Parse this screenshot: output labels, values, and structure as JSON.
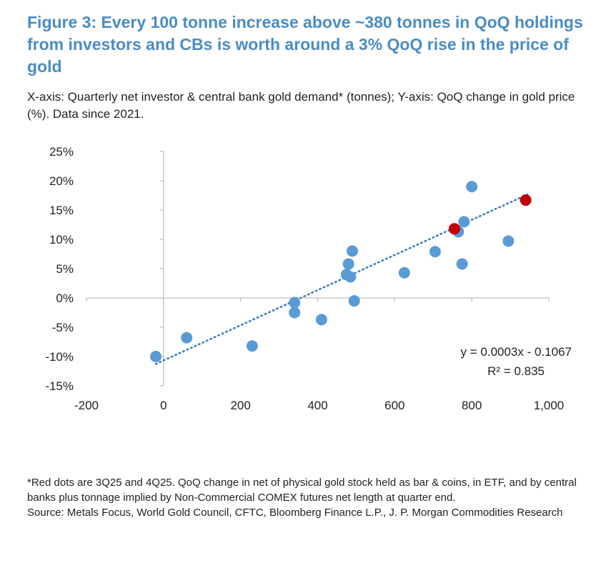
{
  "title": "Figure 3: Every 100 tonne increase above ~380 tonnes in QoQ holdings from investors and CBs is worth around a 3% QoQ rise in the price of gold",
  "subtitle": "X-axis: Quarterly net investor & central bank gold demand* (tonnes); Y-axis: QoQ change in gold price (%). Data since 2021.",
  "footnote": "*Red dots are 3Q25 and 4Q25. QoQ change in net of physical gold stock held as bar & coins, in ETF, and by central banks plus tonnage implied by Non-Commercial COMEX futures net length at quarter end.",
  "source": "Source: Metals Focus, World Gold Council, CFTC, Bloomberg Finance L.P., J. P. Morgan Commodities Research",
  "colors": {
    "title": "#4a8cc4",
    "blue_points": "#5b9bd5",
    "red_points": "#c00000",
    "trendline": "#3a7fc1",
    "axis": "#bfbfbf"
  },
  "chart_data": {
    "type": "scatter",
    "xlim": [
      -200,
      1000
    ],
    "ylim": [
      -0.15,
      0.25
    ],
    "x_ticks": [
      -200,
      0,
      200,
      400,
      600,
      800,
      1000
    ],
    "x_tick_labels": [
      "-200",
      "0",
      "200",
      "400",
      "600",
      "800",
      "1,000"
    ],
    "y_ticks": [
      -0.15,
      -0.1,
      -0.05,
      0.0,
      0.05,
      0.1,
      0.15,
      0.2,
      0.25
    ],
    "y_tick_labels": [
      "-15%",
      "-10%",
      "-5%",
      "0%",
      "5%",
      "10%",
      "15%",
      "20%",
      "25%"
    ],
    "grid": false,
    "series": [
      {
        "color": "#5b9bd5",
        "points": [
          [
            -20,
            -0.1
          ],
          [
            60,
            -0.068
          ],
          [
            230,
            -0.082
          ],
          [
            340,
            -0.025
          ],
          [
            340,
            -0.008
          ],
          [
            410,
            -0.037
          ],
          [
            475,
            0.04
          ],
          [
            480,
            0.058
          ],
          [
            485,
            0.036
          ],
          [
            490,
            0.08
          ],
          [
            495,
            -0.005
          ],
          [
            625,
            0.043
          ],
          [
            705,
            0.079
          ],
          [
            765,
            0.113
          ],
          [
            775,
            0.058
          ],
          [
            780,
            0.13
          ],
          [
            800,
            0.19
          ],
          [
            895,
            0.097
          ]
        ]
      },
      {
        "color": "#c00000",
        "points": [
          [
            755,
            0.118
          ],
          [
            940,
            0.167
          ]
        ]
      }
    ],
    "trendline": {
      "slope": 0.0003,
      "intercept": -0.1067,
      "x_range": [
        -20,
        950
      ],
      "style": "dotted"
    },
    "annotations": [
      "y = 0.0003x - 0.1067",
      "R² = 0.835"
    ]
  }
}
